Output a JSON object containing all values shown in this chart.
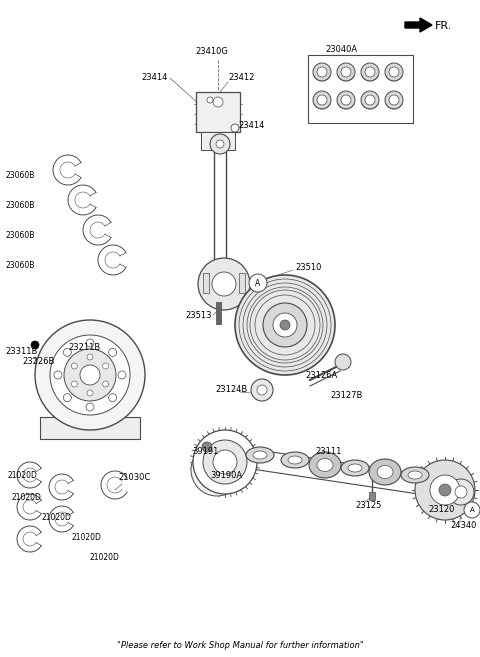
{
  "figsize": [
    4.8,
    6.57
  ],
  "dpi": 100,
  "bg_color": "#ffffff",
  "line_color": "#4a4a4a",
  "footer": "\"Please refer to Work Shop Manual for further information\"",
  "xlim": [
    0,
    480
  ],
  "ylim": [
    0,
    657
  ]
}
